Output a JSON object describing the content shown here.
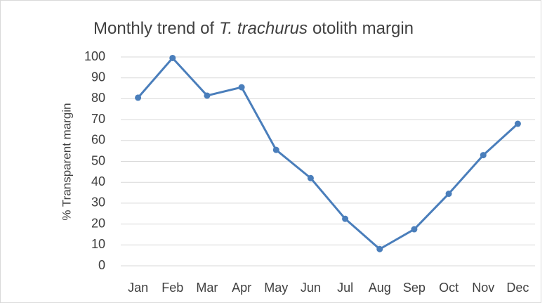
{
  "chart_data": {
    "type": "line",
    "title_parts": [
      "Monthly trend of",
      "T. trachurus",
      "otolith margin"
    ],
    "y_label": "% Transparent margin",
    "categories": [
      "Jan",
      "Feb",
      "Mar",
      "Apr",
      "May",
      "Jun",
      "Jul",
      "Aug",
      "Sep",
      "Oct",
      "Nov",
      "Dec"
    ],
    "series": [
      {
        "color": "#4a7ebb",
        "values": [
          80.5,
          99.5,
          81.5,
          85.5,
          55.5,
          42,
          22.5,
          8,
          17.5,
          34.5,
          53,
          68
        ]
      }
    ],
    "ylim": [
      0,
      100
    ],
    "yticks": [
      0,
      10,
      20,
      30,
      40,
      50,
      60,
      70,
      80,
      90,
      100
    ],
    "grid": true
  }
}
